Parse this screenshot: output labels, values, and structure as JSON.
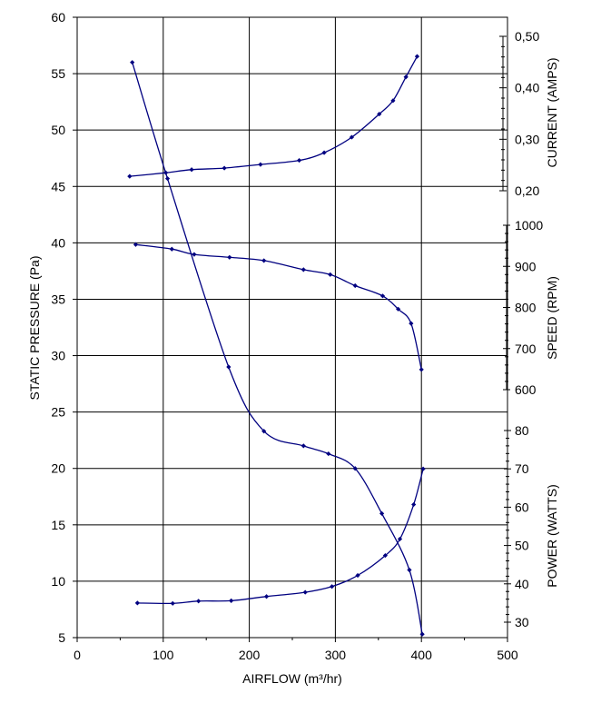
{
  "chart_data": {
    "type": "line",
    "title": "",
    "xlabel": "AIRFLOW (m³/hr)",
    "ylabel": "STATIC PRESSURE (Pa)",
    "xlim": [
      0,
      500
    ],
    "ylim": [
      5,
      60
    ],
    "x_ticks": [
      "0",
      "100",
      "200",
      "300",
      "400",
      "500"
    ],
    "y_ticks": [
      "5",
      "10",
      "15",
      "20",
      "25",
      "30",
      "35",
      "40",
      "45",
      "50",
      "55",
      "60"
    ],
    "grid": true,
    "line_color": "#000080",
    "right_axes": [
      {
        "label": "CURRENT (AMPS)",
        "ticks": [
          "0,20",
          "0,30",
          "0,40",
          "0,50"
        ]
      },
      {
        "label": "SPEED (RPM)",
        "ticks": [
          "600",
          "700",
          "800",
          "900",
          "1000"
        ]
      },
      {
        "label": "POWER (WATTS)",
        "ticks": [
          "30",
          "40",
          "50",
          "60",
          "70",
          "80"
        ]
      }
    ],
    "series": [
      {
        "axis": "STATIC PRESSURE (Pa)",
        "x": [
          64,
          105,
          176,
          217,
          263,
          292,
          323,
          354,
          386,
          401
        ],
        "y": [
          56.0,
          45.7,
          29.0,
          23.3,
          22.0,
          21.3,
          20.0,
          16.0,
          11.0,
          5.3
        ]
      },
      {
        "axis": "CURRENT (AMPS)",
        "x": [
          61,
          103,
          133,
          171,
          213,
          258,
          287,
          319,
          351,
          367,
          382,
          395
        ],
        "y": [
          0.228,
          0.235,
          0.241,
          0.244,
          0.251,
          0.259,
          0.274,
          0.304,
          0.349,
          0.375,
          0.421,
          0.461
        ]
      },
      {
        "axis": "SPEED (RPM)",
        "x": [
          68,
          110,
          136,
          177,
          217,
          263,
          294,
          323,
          355,
          373,
          388,
          400
        ],
        "y": [
          953,
          942,
          929,
          922,
          914,
          892,
          880,
          853,
          828,
          796,
          761,
          649
        ]
      },
      {
        "axis": "POWER (WATTS)",
        "x": [
          70,
          111,
          141,
          179,
          220,
          265,
          296,
          326,
          358,
          375,
          391,
          402
        ],
        "y": [
          35.0,
          34.9,
          35.5,
          35.6,
          36.7,
          37.8,
          39.3,
          42.2,
          47.4,
          51.7,
          60.7,
          70.0
        ]
      }
    ]
  }
}
